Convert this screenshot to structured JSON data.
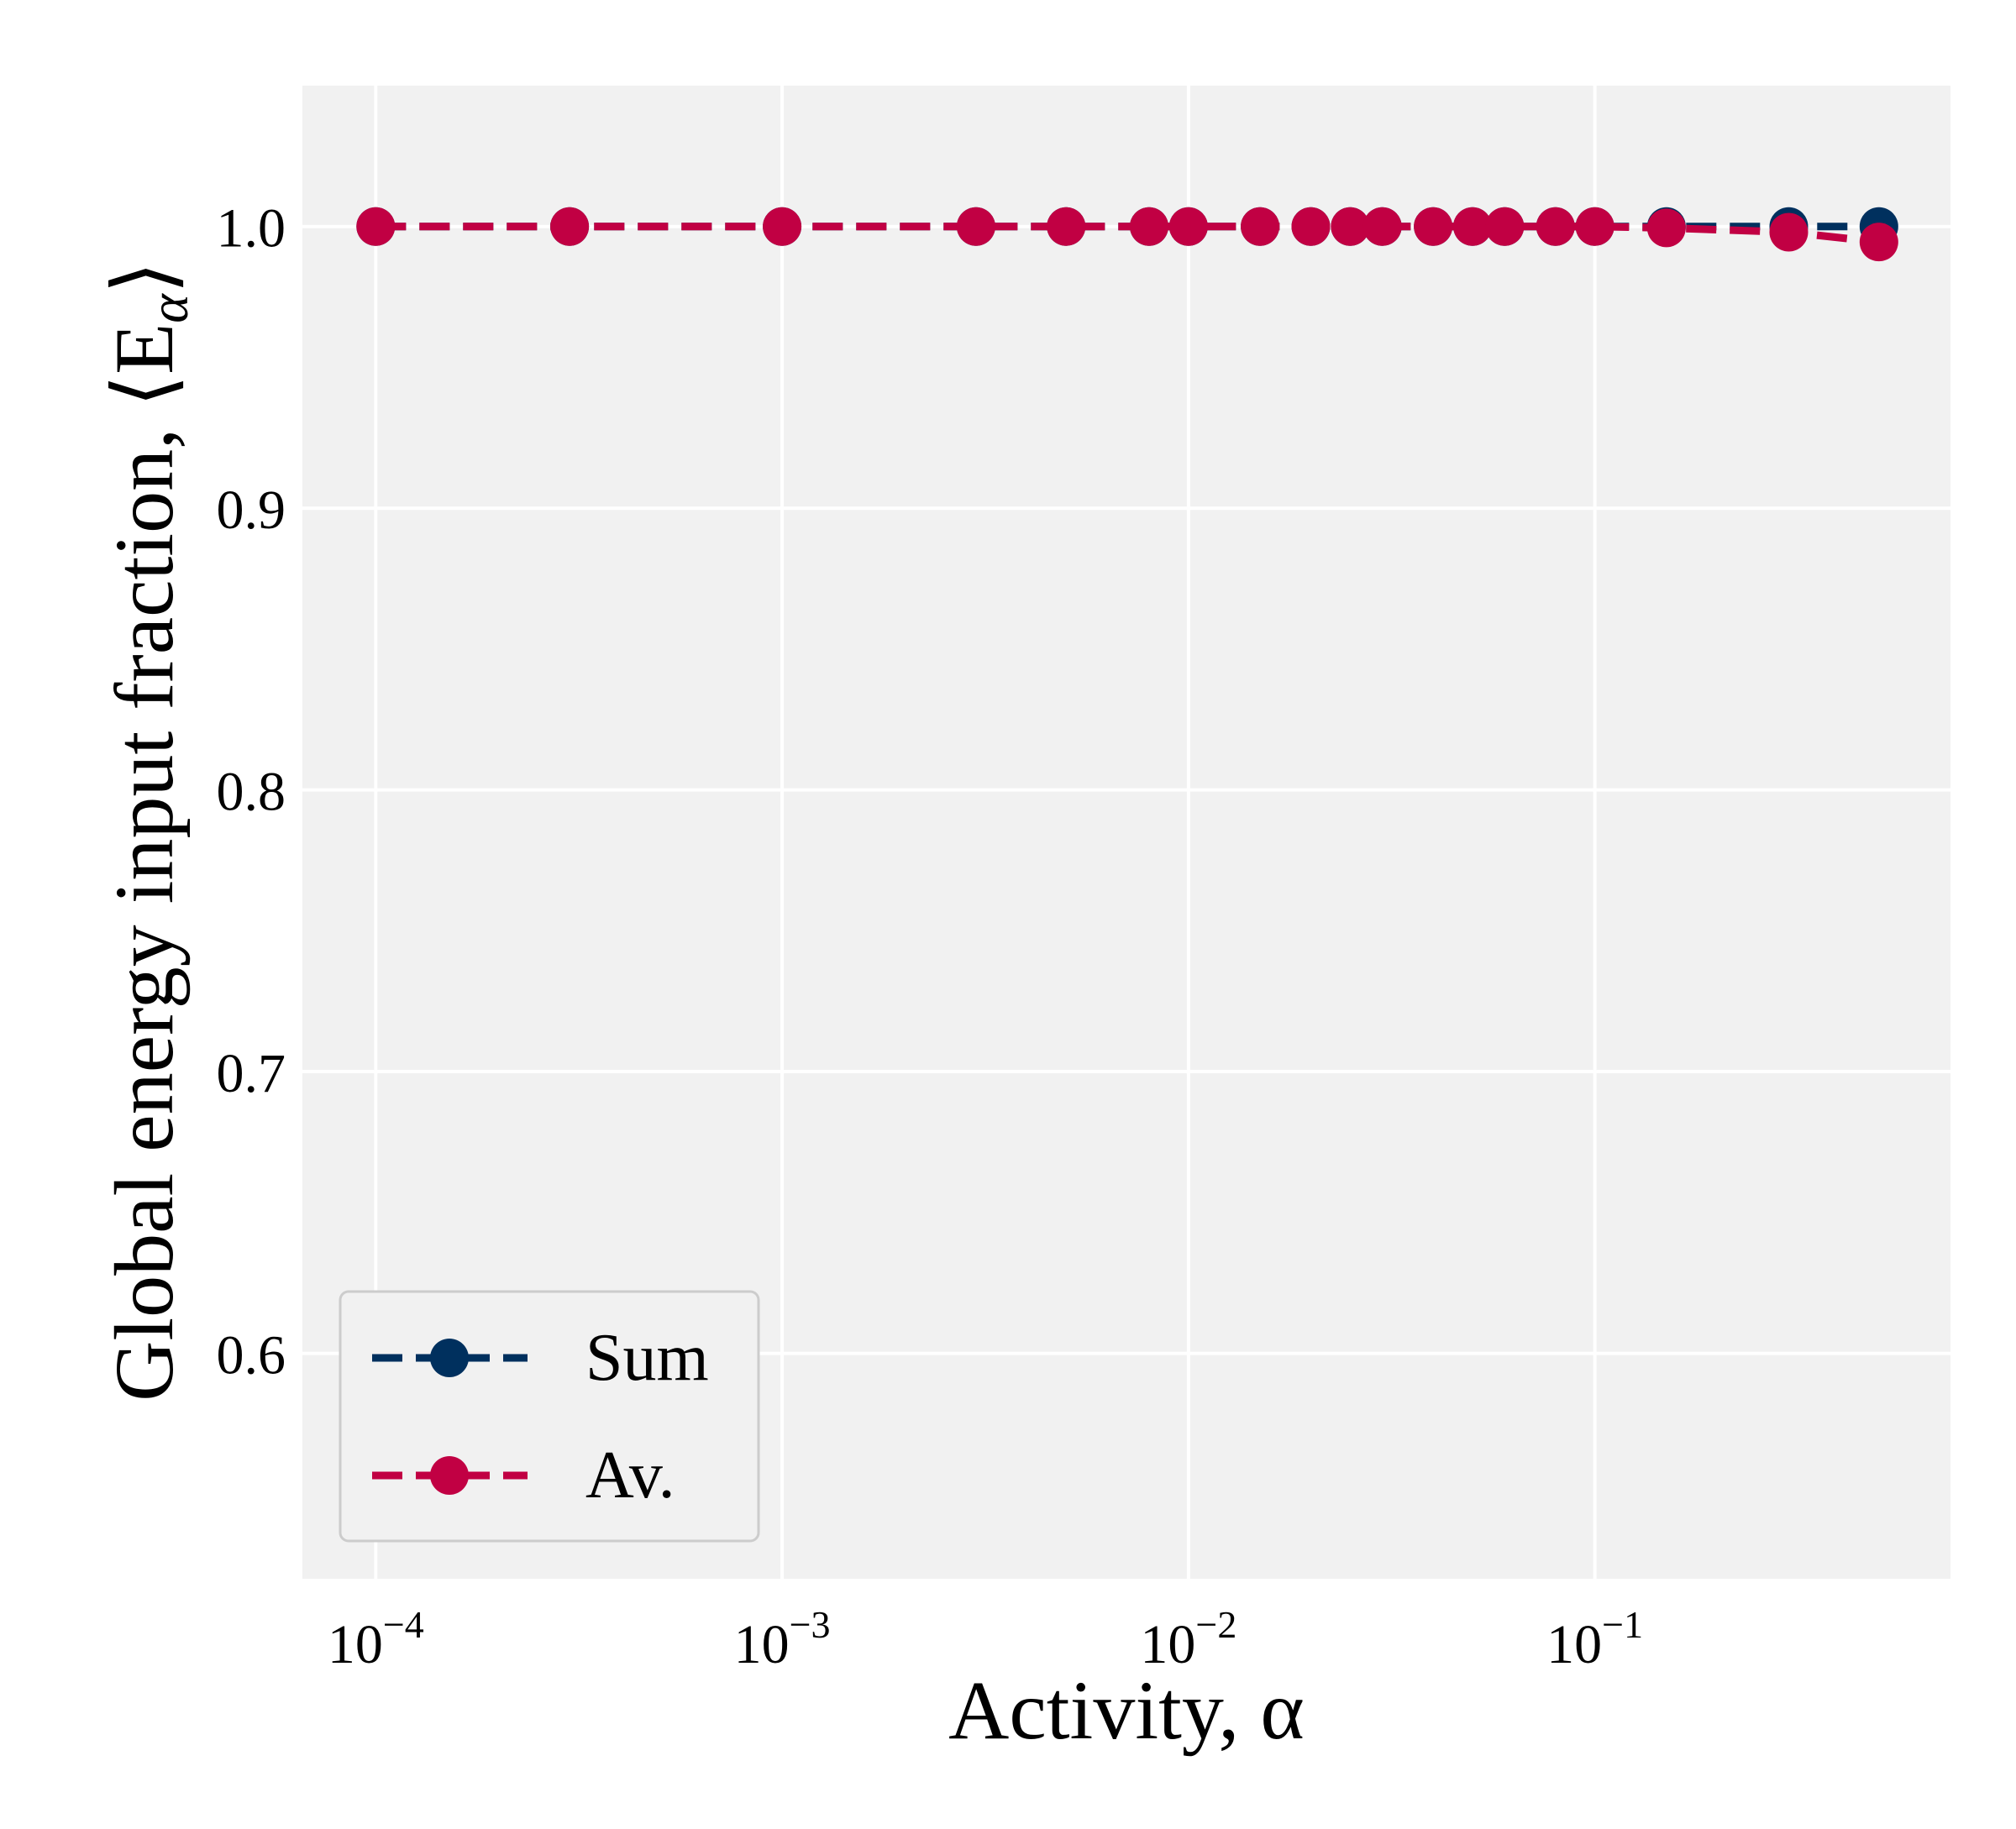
{
  "chart_data": {
    "type": "line",
    "title": "",
    "xlabel": "Activity, α",
    "ylabel": "Global energy input fraction, ⟨E",
    "ylabel_sub": "α",
    "ylabel_close": "⟩",
    "xscale": "log",
    "xlim": [
      6.6e-05,
      0.75
    ],
    "ylim": [
      0.52,
      1.05
    ],
    "grid": true,
    "x_ticks": [
      {
        "value": 0.0001,
        "base": "10",
        "exp": "−4"
      },
      {
        "value": 0.001,
        "base": "10",
        "exp": "−3"
      },
      {
        "value": 0.01,
        "base": "10",
        "exp": "−2"
      },
      {
        "value": 0.1,
        "base": "10",
        "exp": "−1"
      }
    ],
    "y_ticks": [
      {
        "value": 0.6,
        "label": "0.6"
      },
      {
        "value": 0.7,
        "label": "0.7"
      },
      {
        "value": 0.8,
        "label": "0.8"
      },
      {
        "value": 0.9,
        "label": "0.9"
      },
      {
        "value": 1.0,
        "label": "1.0"
      }
    ],
    "x": [
      0.0001,
      0.0003,
      0.001,
      0.003,
      0.005,
      0.008,
      0.01,
      0.015,
      0.02,
      0.025,
      0.03,
      0.04,
      0.05,
      0.06,
      0.08,
      0.1,
      0.15,
      0.3,
      0.5
    ],
    "series": [
      {
        "name": "Sum",
        "color": "#00305e",
        "values": [
          1,
          1,
          1,
          1,
          1,
          1,
          1,
          1,
          1,
          1,
          1,
          1,
          1,
          1,
          1,
          1,
          1.0,
          1.0,
          1.0
        ]
      },
      {
        "name": "Av.",
        "color": "#c10043",
        "values": [
          1,
          1,
          1,
          1,
          1,
          1,
          1,
          1,
          1,
          1,
          1,
          1,
          1,
          1,
          1,
          1,
          0.9995,
          0.998,
          0.9945
        ]
      }
    ],
    "legend_position": "lower-left"
  }
}
